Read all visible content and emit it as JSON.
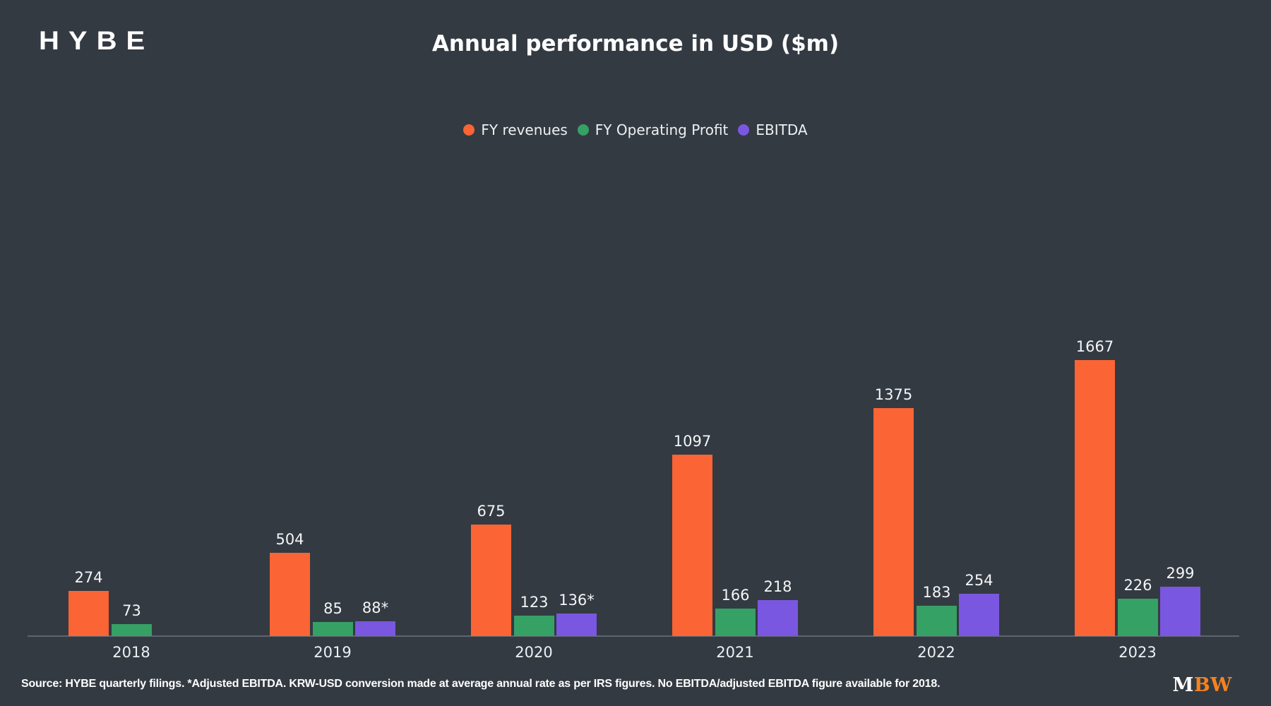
{
  "header": {
    "logo": "HYBE",
    "title": "Annual performance in USD ($m)"
  },
  "legend": [
    {
      "label": "FY revenues",
      "color": "#fb6434",
      "marker": "circle-icon"
    },
    {
      "label": "FY Operating Profit",
      "color": "#36a164",
      "marker": "circle-icon"
    },
    {
      "label": "EBITDA",
      "color": "#7a57e0",
      "marker": "circle-icon"
    }
  ],
  "chart_data": {
    "type": "bar",
    "title": "Annual performance in USD ($m)",
    "categories": [
      "2018",
      "2019",
      "2020",
      "2021",
      "2022",
      "2023"
    ],
    "series": [
      {
        "name": "FY revenues",
        "color": "#fb6434",
        "values": [
          274,
          504,
          675,
          1097,
          1375,
          1667
        ],
        "labels": [
          "274",
          "504",
          "675",
          "1097",
          "1375",
          "1667"
        ]
      },
      {
        "name": "FY Operating Profit",
        "color": "#36a164",
        "values": [
          73,
          85,
          123,
          166,
          183,
          226
        ],
        "labels": [
          "73",
          "85",
          "123",
          "166",
          "183",
          "226"
        ]
      },
      {
        "name": "EBITDA",
        "color": "#7a57e0",
        "values": [
          null,
          88,
          136,
          218,
          254,
          299
        ],
        "labels": [
          null,
          "88*",
          "136*",
          "218",
          "254",
          "299"
        ]
      }
    ],
    "ylim": [
      0,
      1800
    ],
    "xlabel": "",
    "ylabel": "",
    "grid": false,
    "value_labels": true,
    "legend_position": "top-center"
  },
  "footer": {
    "source": "Source: HYBE quarterly filings. *Adjusted EBITDA. KRW-USD conversion made at average annual rate as per IRS figures. No EBITDA/adjusted EBITDA figure available for 2018.",
    "brand": {
      "part1": "M",
      "part2": "BW"
    }
  },
  "colors": {
    "background": "#333a42",
    "revenue": "#fb6434",
    "operating_profit": "#36a164",
    "ebitda": "#7a57e0",
    "axis_line": "#5d6670",
    "text": "#f2f4f5",
    "brand_orange": "#f58220"
  }
}
